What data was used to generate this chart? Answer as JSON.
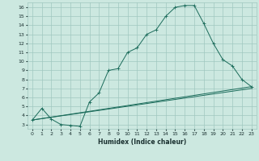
{
  "xlabel": "Humidex (Indice chaleur)",
  "ylabel": "",
  "bg_color": "#cce8e0",
  "grid_color": "#a0c8c0",
  "line_color": "#1a6b5a",
  "xlim": [
    -0.5,
    23.5
  ],
  "ylim": [
    2.5,
    16.5
  ],
  "xticks": [
    0,
    1,
    2,
    3,
    4,
    5,
    6,
    7,
    8,
    9,
    10,
    11,
    12,
    13,
    14,
    15,
    16,
    17,
    18,
    19,
    20,
    21,
    22,
    23
  ],
  "yticks": [
    3,
    4,
    5,
    6,
    7,
    8,
    9,
    10,
    11,
    12,
    13,
    14,
    15,
    16
  ],
  "series1_x": [
    0,
    1,
    2,
    3,
    4,
    5,
    6,
    7,
    8,
    9,
    10,
    11,
    12,
    13,
    14,
    15,
    16,
    17,
    18,
    19,
    20,
    21,
    22,
    23
  ],
  "series1_y": [
    3.5,
    4.8,
    3.6,
    3.0,
    2.9,
    2.8,
    5.5,
    6.5,
    9.0,
    9.2,
    11.0,
    11.5,
    13.0,
    13.5,
    15.0,
    16.0,
    16.2,
    16.2,
    14.2,
    12.0,
    10.2,
    9.5,
    8.0,
    7.2
  ],
  "series2_x": [
    0,
    23
  ],
  "series2_y": [
    3.5,
    7.2
  ],
  "series3_x": [
    0,
    23
  ],
  "series3_y": [
    3.5,
    7.0
  ]
}
